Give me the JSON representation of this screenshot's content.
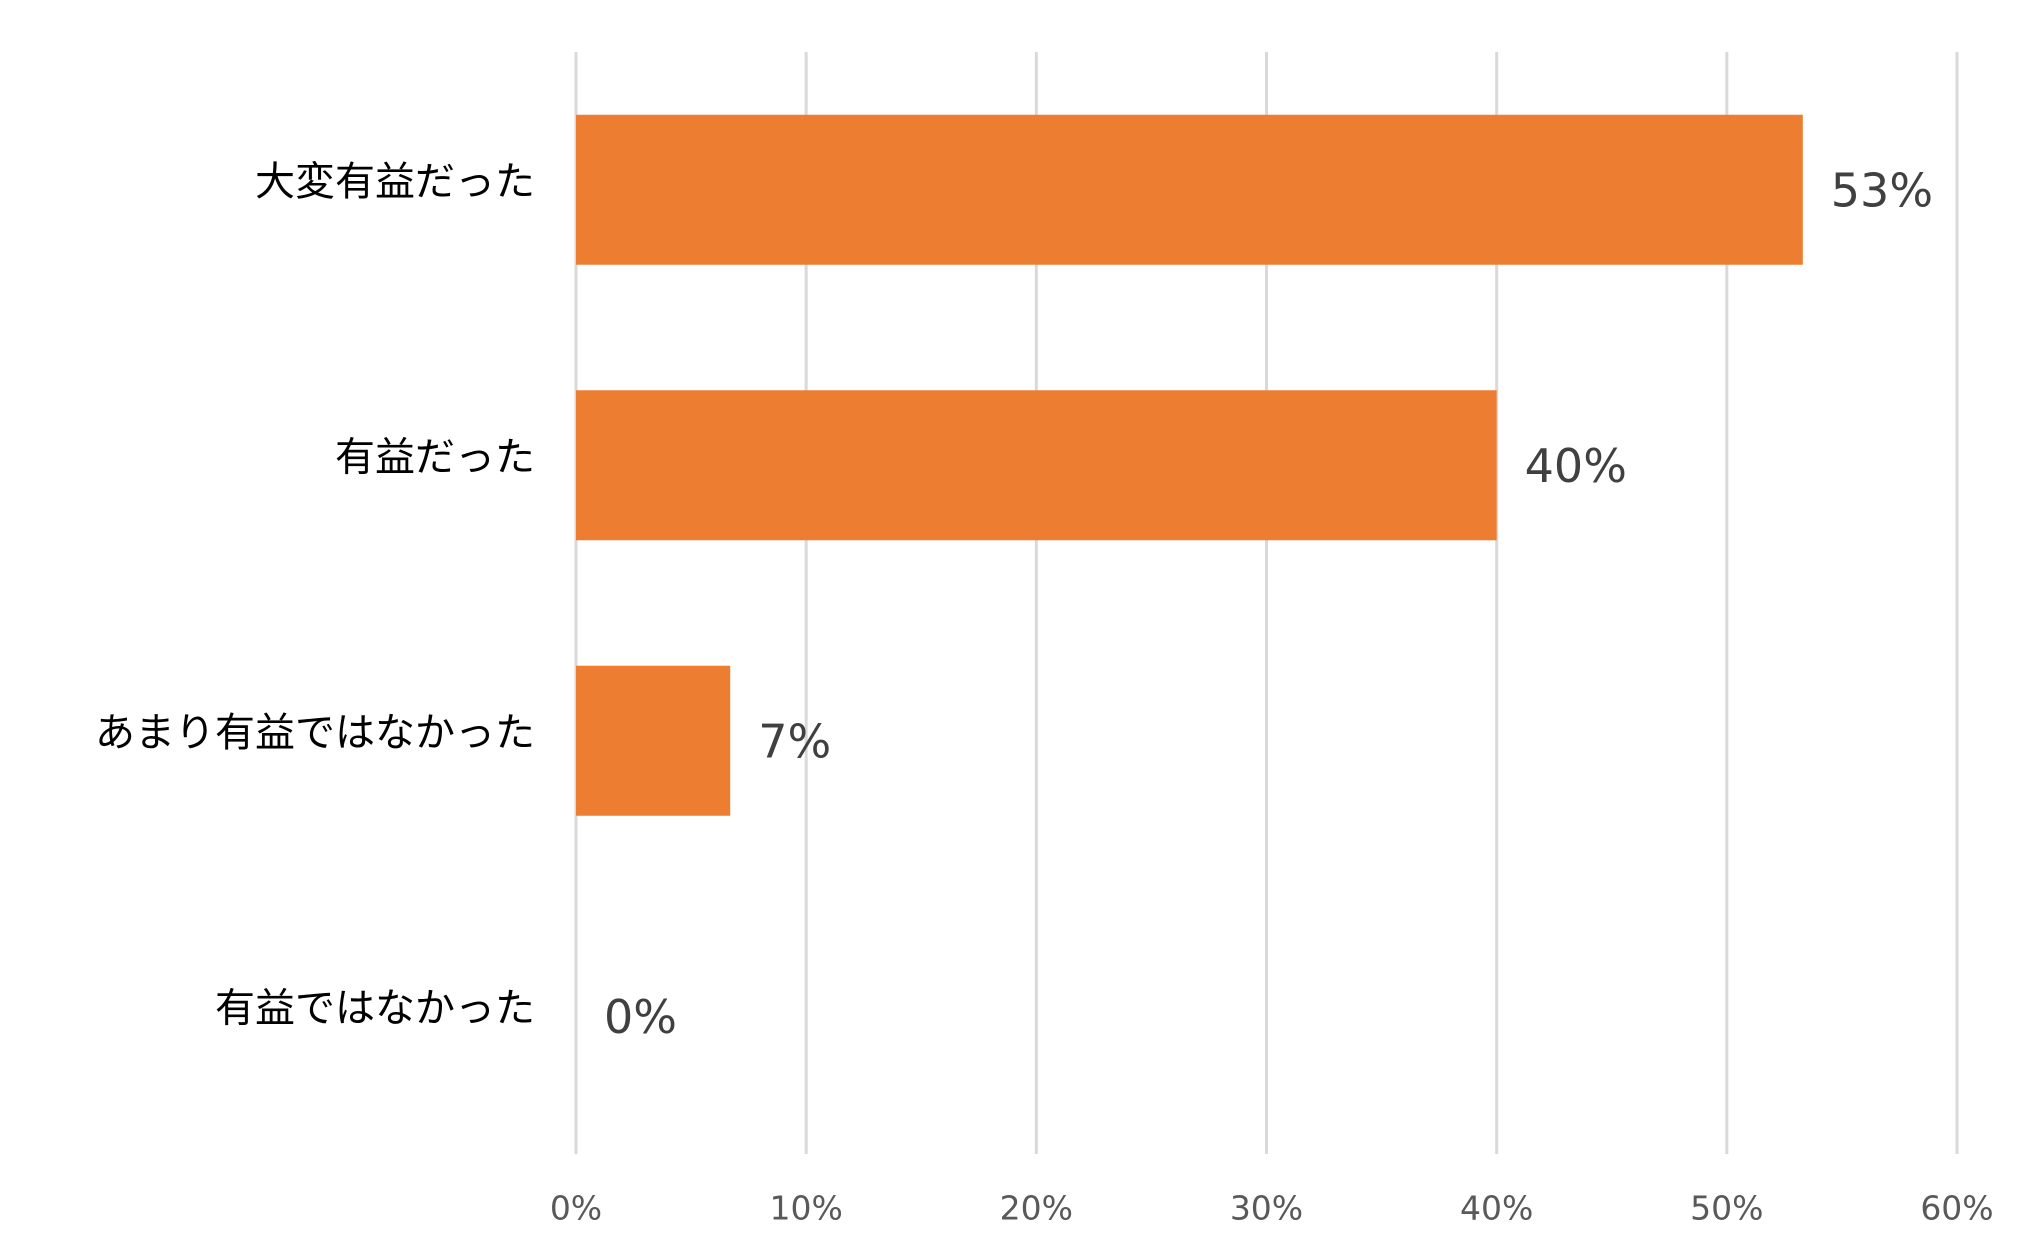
{
  "chart_data": {
    "type": "barh",
    "categories": [
      "大変有益だった",
      "有益だった",
      "あまり有益ではなかった",
      "有益ではなかった"
    ],
    "values": [
      53.3,
      40,
      6.7,
      0
    ],
    "value_labels": [
      "53%",
      "40%",
      "7%",
      "0%"
    ],
    "color": "#ed7d31",
    "xlim": [
      0,
      60
    ],
    "xticks": [
      {
        "value": 0,
        "label": "0%"
      },
      {
        "value": 10,
        "label": "10%"
      },
      {
        "value": 20,
        "label": "20%"
      },
      {
        "value": 30,
        "label": "30%"
      },
      {
        "value": 40,
        "label": "40%"
      },
      {
        "value": 50,
        "label": "50%"
      },
      {
        "value": 60,
        "label": "60%"
      }
    ],
    "grid": true
  }
}
